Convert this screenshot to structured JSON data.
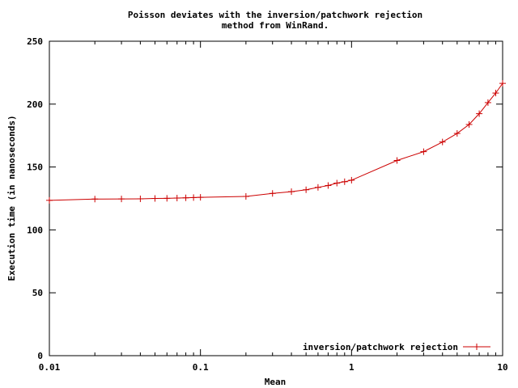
{
  "chart_data": {
    "type": "line",
    "title": "Poisson deviates with the inversion/patchwork rejection",
    "title_line2": "method from WinRand.",
    "xlabel": "Mean",
    "ylabel": "Execution time (in nanoseconds)",
    "x_scale": "log",
    "xlim": [
      0.01,
      10
    ],
    "ylim": [
      0,
      250
    ],
    "x_ticks": [
      0.01,
      0.1,
      1,
      10
    ],
    "x_tick_labels": [
      "0.01",
      "0.1",
      "1",
      "10"
    ],
    "y_ticks": [
      0,
      50,
      100,
      150,
      200,
      250
    ],
    "y_tick_labels": [
      "0",
      "50",
      "100",
      "150",
      "200",
      "250"
    ],
    "grid": false,
    "legend_position": "bottom-right",
    "series": [
      {
        "name": "inversion/patchwork rejection",
        "color": "#cc0000",
        "marker": "plus",
        "x": [
          0.01,
          0.02,
          0.03,
          0.04,
          0.05,
          0.06,
          0.07,
          0.08,
          0.09,
          0.1,
          0.2,
          0.3,
          0.4,
          0.5,
          0.6,
          0.7,
          0.8,
          0.9,
          1,
          2,
          3,
          4,
          5,
          6,
          7,
          8,
          9,
          10
        ],
        "y": [
          123.5,
          124.5,
          124.6,
          124.7,
          125,
          125.1,
          125.3,
          125.5,
          125.7,
          125.9,
          126.6,
          129,
          130.4,
          131.9,
          133.8,
          135.3,
          137.2,
          138.3,
          139.5,
          155.2,
          162.2,
          169.9,
          176.7,
          183.8,
          192.4,
          201.2,
          208.8,
          216.5
        ]
      }
    ]
  }
}
